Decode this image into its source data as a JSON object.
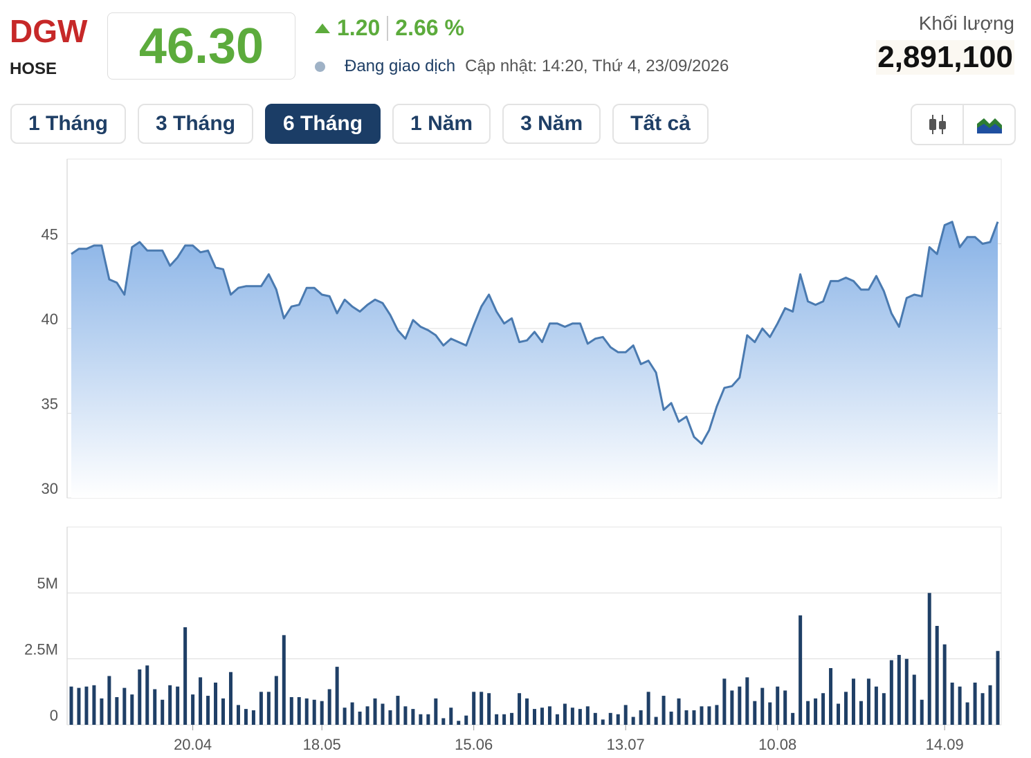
{
  "header": {
    "ticker": "DGW",
    "exchange": "HOSE",
    "price": "46.30",
    "change": "1.20",
    "change_percent": "2.66 %",
    "status": "Đang giao dịch",
    "updated": "Cập nhật: 14:20, Thứ 4, 23/09/2026",
    "volume_label": "Khối lượng",
    "volume": "2,891,100"
  },
  "tabs": [
    "1 Tháng",
    "3 Tháng",
    "6 Tháng",
    "1 Năm",
    "3 Năm",
    "Tất cả"
  ],
  "active_tab": 2,
  "chart_data": [
    {
      "type": "area",
      "color": "#4a7ab0",
      "grid": true,
      "ylim": [
        30,
        50
      ],
      "yticks": [
        30,
        35,
        40,
        45
      ],
      "values": [
        44.4,
        44.7,
        44.7,
        44.9,
        44.9,
        42.9,
        42.7,
        42.0,
        44.8,
        45.1,
        44.6,
        44.6,
        44.6,
        43.7,
        44.2,
        44.9,
        44.9,
        44.5,
        44.6,
        43.6,
        43.5,
        42.0,
        42.4,
        42.5,
        42.5,
        42.5,
        43.2,
        42.3,
        40.6,
        41.3,
        41.4,
        42.4,
        42.4,
        42.0,
        41.9,
        40.9,
        41.7,
        41.3,
        41.0,
        41.4,
        41.7,
        41.5,
        40.8,
        39.9,
        39.4,
        40.5,
        40.1,
        39.9,
        39.6,
        39.0,
        39.4,
        39.2,
        39.0,
        40.2,
        41.3,
        42.0,
        41.0,
        40.3,
        40.6,
        39.2,
        39.3,
        39.8,
        39.2,
        40.3,
        40.3,
        40.1,
        40.3,
        40.3,
        39.1,
        39.4,
        39.5,
        38.9,
        38.6,
        38.6,
        39.0,
        37.9,
        38.1,
        37.4,
        35.2,
        35.6,
        34.5,
        34.8,
        33.6,
        33.2,
        34.0,
        35.4,
        36.5,
        36.6,
        37.1,
        39.6,
        39.2,
        40.0,
        39.5,
        40.3,
        41.2,
        41.0,
        43.2,
        41.6,
        41.4,
        41.6,
        42.8,
        42.8,
        43.0,
        42.8,
        42.3,
        42.3,
        43.1,
        42.2,
        40.9,
        40.1,
        41.8,
        42.0,
        41.9,
        44.8,
        44.4,
        46.1,
        46.3,
        44.8,
        45.4,
        45.4,
        45.0,
        45.1,
        46.3
      ]
    },
    {
      "type": "bar",
      "color": "#1f3f66",
      "grid": true,
      "ylim": [
        0,
        7.5
      ],
      "yticks": [
        0,
        {
          "value": 2.5,
          "label": "2.5M"
        },
        {
          "value": 5,
          "label": "5M"
        }
      ],
      "categories": [
        null,
        null,
        null,
        null,
        null,
        null,
        null,
        null,
        null,
        null,
        null,
        null,
        null,
        null,
        null,
        null,
        "20.04",
        null,
        null,
        null,
        null,
        null,
        null,
        null,
        null,
        null,
        null,
        null,
        null,
        null,
        null,
        null,
        null,
        "18.05",
        null,
        null,
        null,
        null,
        null,
        null,
        null,
        null,
        null,
        null,
        null,
        null,
        null,
        null,
        null,
        null,
        null,
        null,
        null,
        "15.06",
        null,
        null,
        null,
        null,
        null,
        null,
        null,
        null,
        null,
        null,
        null,
        null,
        null,
        null,
        null,
        null,
        null,
        null,
        null,
        "13.07",
        null,
        null,
        null,
        null,
        null,
        null,
        null,
        null,
        null,
        null,
        null,
        null,
        null,
        null,
        null,
        null,
        null,
        null,
        null,
        "10.08",
        null,
        null,
        null,
        null,
        null,
        null,
        null,
        null,
        null,
        null,
        null,
        null,
        null,
        null,
        null,
        null,
        null,
        null,
        null,
        null,
        null,
        "14.09",
        null,
        null,
        null,
        null,
        null,
        null,
        null
      ],
      "values": [
        1.45,
        1.4,
        1.45,
        1.5,
        1.0,
        1.85,
        1.05,
        1.4,
        1.15,
        2.1,
        2.25,
        1.35,
        0.95,
        1.5,
        1.45,
        3.7,
        1.15,
        1.8,
        1.1,
        1.6,
        1.0,
        2.0,
        0.75,
        0.6,
        0.55,
        1.25,
        1.25,
        1.85,
        3.4,
        1.05,
        1.05,
        1.0,
        0.95,
        0.9,
        1.35,
        2.2,
        0.65,
        0.85,
        0.5,
        0.7,
        1.0,
        0.8,
        0.55,
        1.1,
        0.7,
        0.6,
        0.4,
        0.4,
        1.0,
        0.25,
        0.65,
        0.15,
        0.35,
        1.25,
        1.25,
        1.2,
        0.4,
        0.4,
        0.45,
        1.2,
        1.0,
        0.6,
        0.65,
        0.7,
        0.4,
        0.8,
        0.65,
        0.6,
        0.7,
        0.45,
        0.2,
        0.45,
        0.4,
        0.75,
        0.3,
        0.55,
        1.25,
        0.3,
        1.1,
        0.5,
        1.0,
        0.55,
        0.55,
        0.7,
        0.7,
        0.75,
        1.75,
        1.3,
        1.45,
        1.8,
        0.9,
        1.4,
        0.85,
        1.45,
        1.3,
        0.45,
        4.15,
        0.9,
        1.0,
        1.2,
        2.15,
        0.8,
        1.25,
        1.75,
        0.9,
        1.75,
        1.45,
        1.2,
        2.45,
        2.65,
        2.5,
        1.9,
        0.95,
        5.0,
        3.75,
        3.05,
        1.6,
        1.45,
        0.85,
        1.6,
        1.2,
        1.5,
        2.8
      ]
    }
  ]
}
